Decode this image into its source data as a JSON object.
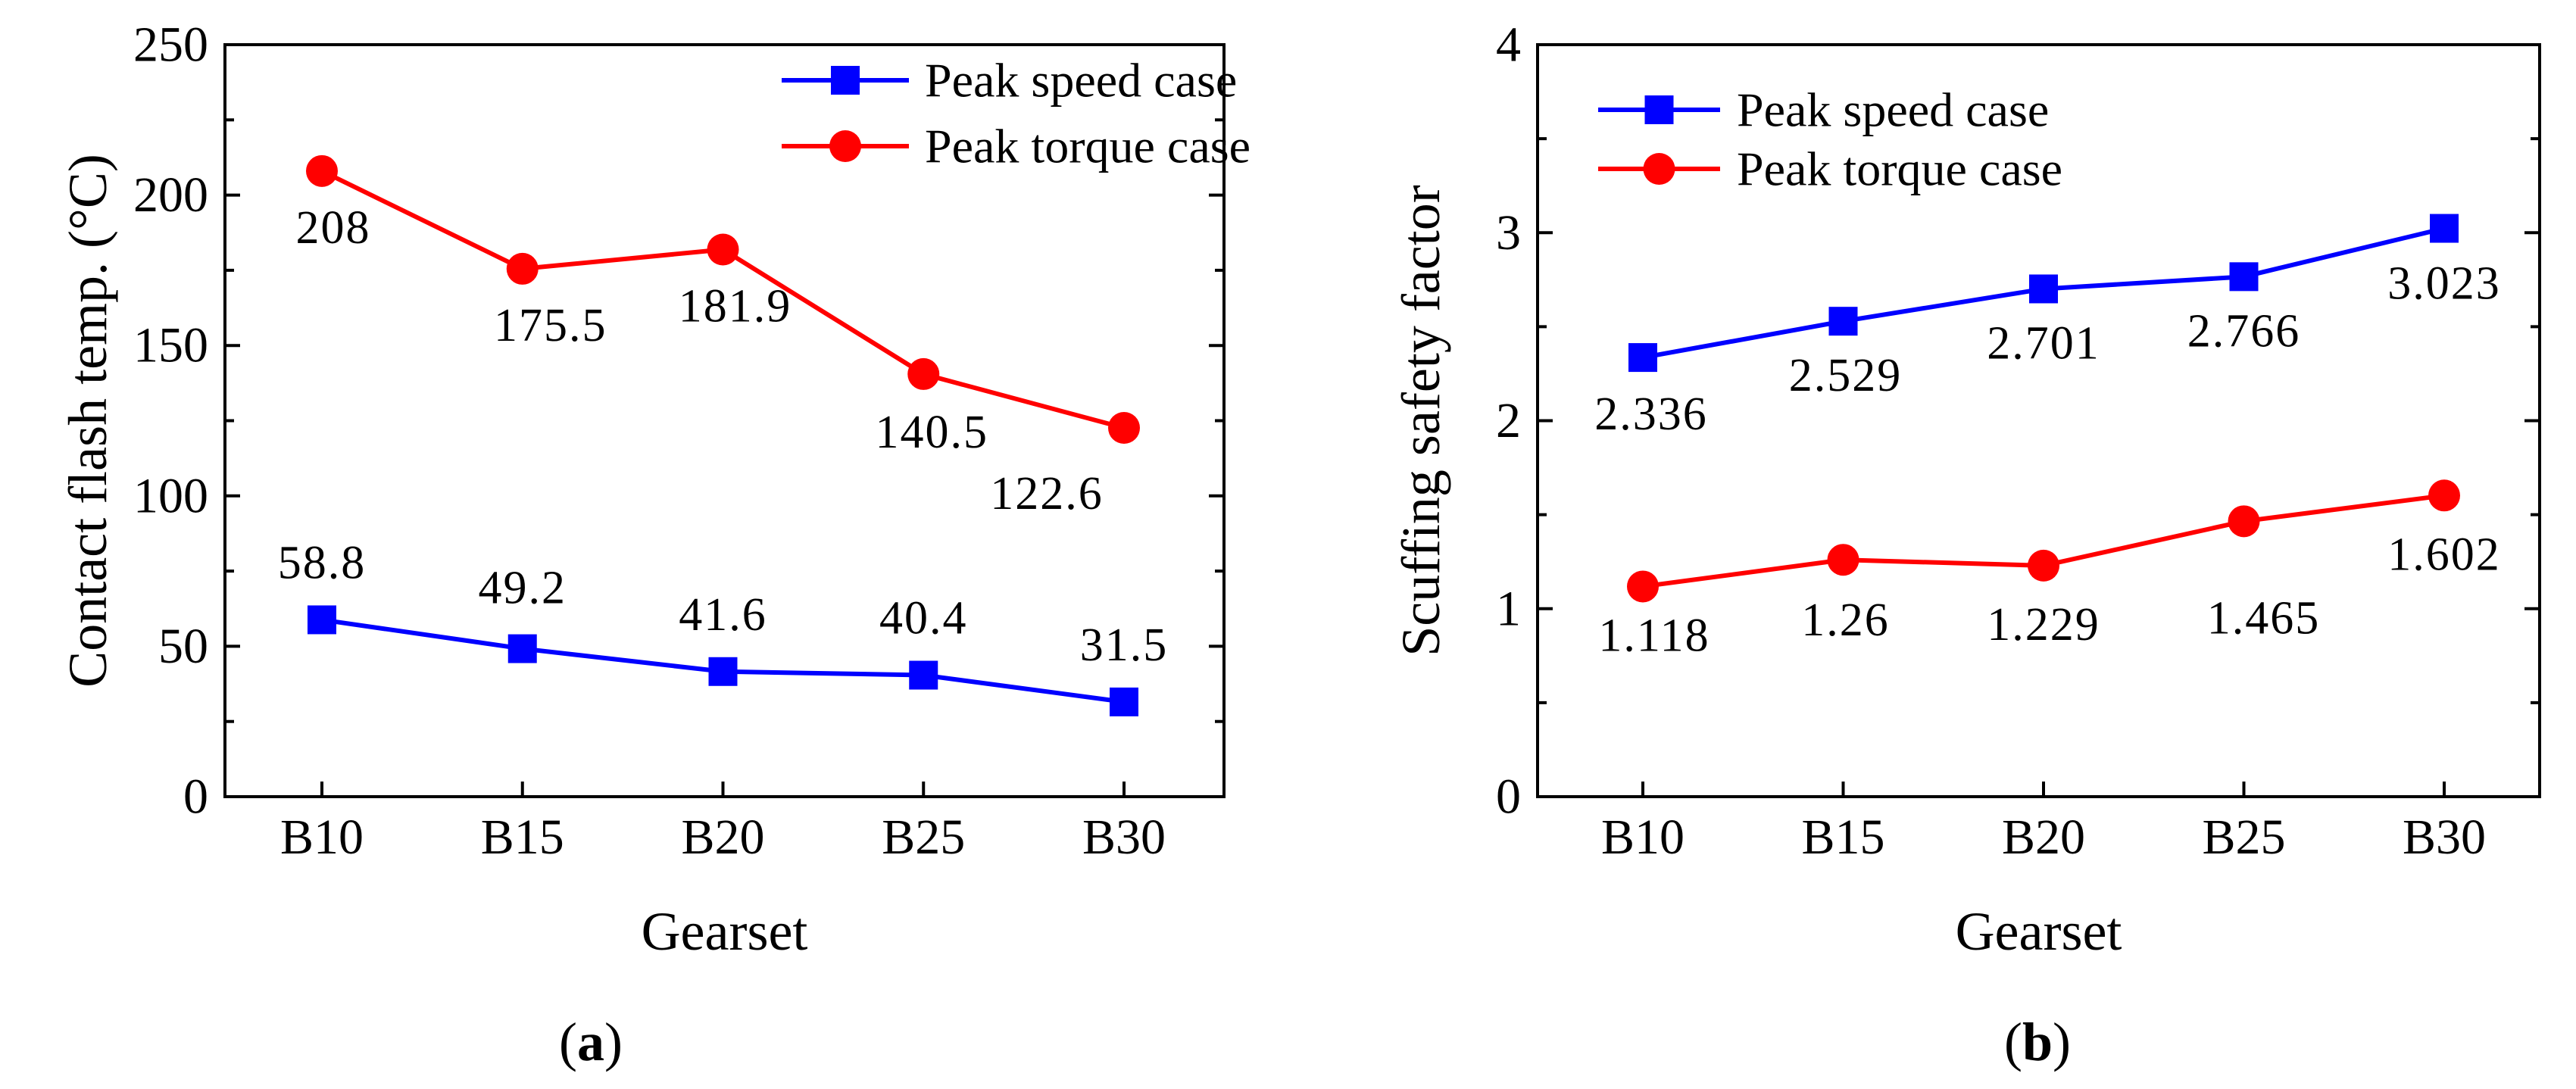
{
  "chart_data": [
    {
      "type": "line",
      "panel_label": "(a)",
      "caption_letter": "a",
      "categories": [
        "B10",
        "B15",
        "B20",
        "B25",
        "B30"
      ],
      "xlabel": "Gearset",
      "ylabel": "Contact flash temp. (°C)",
      "ylim": [
        0,
        250
      ],
      "yticks": [
        0,
        50,
        100,
        150,
        200,
        250
      ],
      "legend_placement": "top-right",
      "series": [
        {
          "name": "Peak speed case",
          "color": "#0000ff",
          "marker": "square",
          "values": [
            58.8,
            49.2,
            41.6,
            40.4,
            31.5
          ],
          "labels": [
            "58.8",
            "49.2",
            "41.6",
            "40.4",
            "31.5"
          ]
        },
        {
          "name": "Peak torque case",
          "color": "#ff0000",
          "marker": "circle",
          "values": [
            208,
            175.5,
            181.9,
            140.5,
            122.6
          ],
          "labels": [
            "208",
            "175.5",
            "181.9",
            "140.5",
            "122.6"
          ]
        }
      ]
    },
    {
      "type": "line",
      "panel_label": "(b)",
      "caption_letter": "b",
      "categories": [
        "B10",
        "B15",
        "B20",
        "B25",
        "B30"
      ],
      "xlabel": "Gearset",
      "ylabel": "Scuffing safety factor",
      "ylim": [
        0,
        4
      ],
      "yticks": [
        0,
        1,
        2,
        3,
        4
      ],
      "legend_placement": "top-left",
      "series": [
        {
          "name": "Peak speed case",
          "color": "#0000ff",
          "marker": "square",
          "values": [
            2.336,
            2.529,
            2.701,
            2.766,
            3.023
          ],
          "labels": [
            "2.336",
            "2.529",
            "2.701",
            "2.766",
            "3.023"
          ]
        },
        {
          "name": "Peak torque case",
          "color": "#ff0000",
          "marker": "circle",
          "values": [
            1.118,
            1.26,
            1.229,
            1.465,
            1.602
          ],
          "labels": [
            "1.118",
            "1.26",
            "1.229",
            "1.465",
            "1.602"
          ]
        }
      ]
    }
  ]
}
